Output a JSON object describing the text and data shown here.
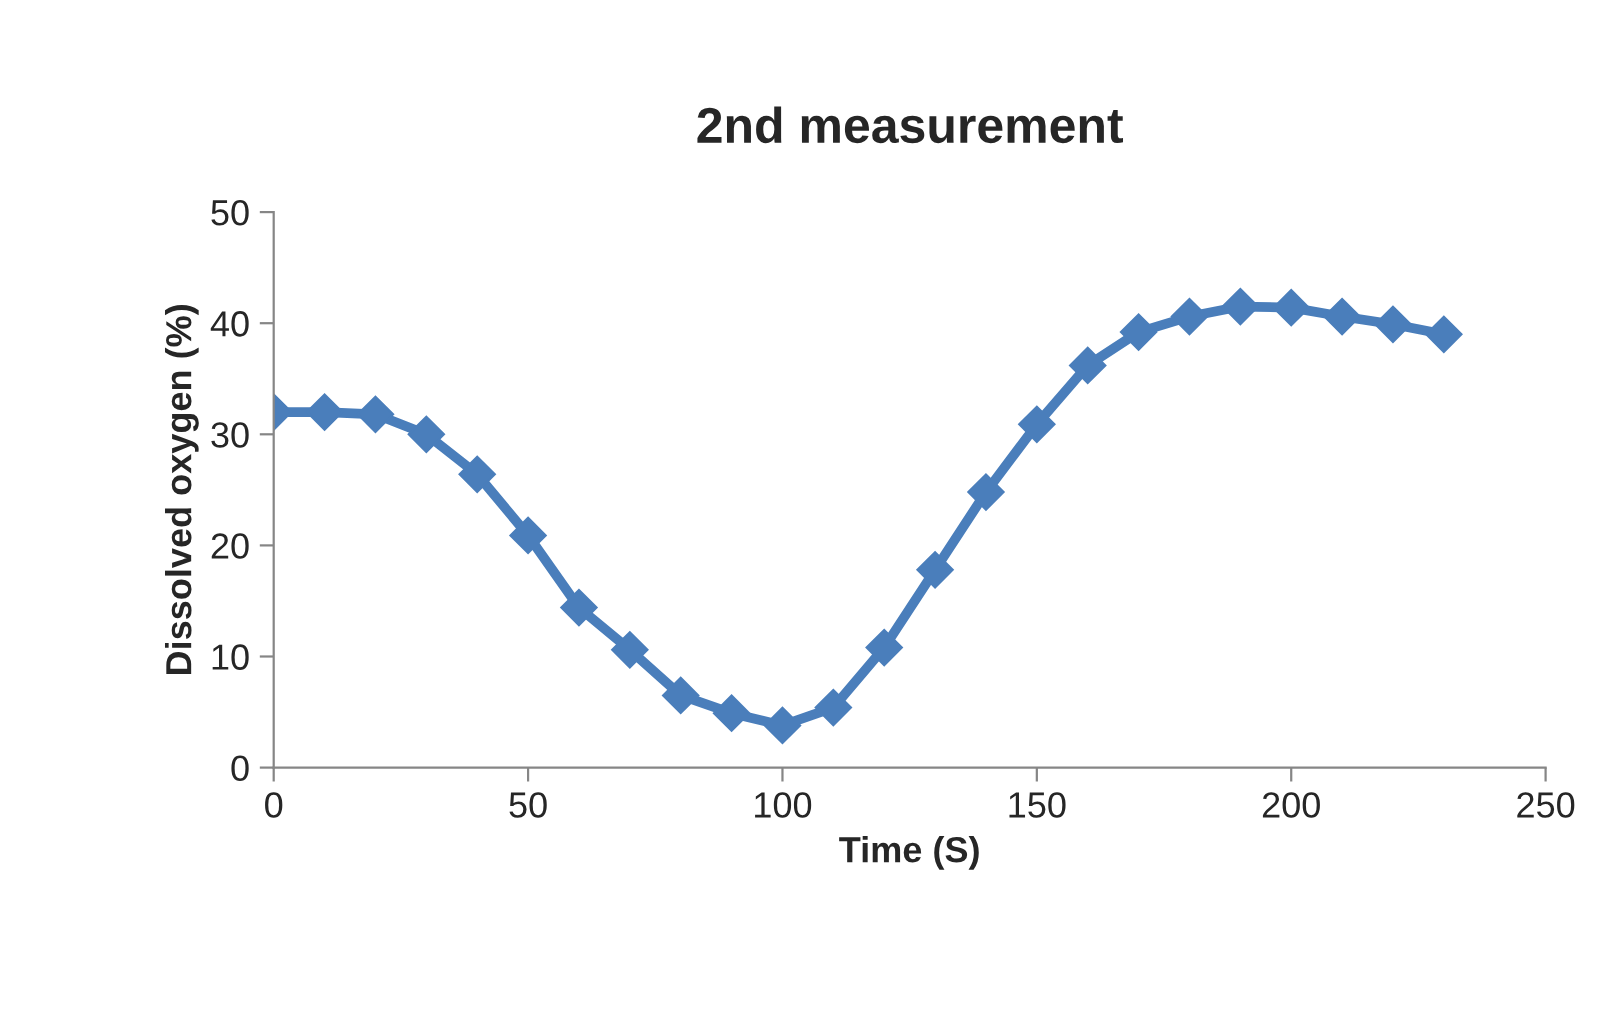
{
  "chart_data": {
    "type": "line",
    "title": "2nd measurement",
    "xlabel": "Time (S)",
    "ylabel": "Dissolved oxygen (%)",
    "x": [
      0,
      10,
      20,
      30,
      40,
      50,
      60,
      70,
      80,
      90,
      100,
      110,
      120,
      130,
      140,
      150,
      160,
      170,
      180,
      190,
      200,
      210,
      220,
      230
    ],
    "series": [
      {
        "color": "#4a7ebb",
        "values": [
          32.0,
          32.0,
          31.8,
          30.0,
          26.4,
          20.9,
          14.4,
          10.6,
          6.5,
          4.9,
          3.8,
          5.4,
          10.8,
          17.8,
          24.8,
          30.9,
          36.2,
          39.2,
          40.6,
          41.5,
          41.4,
          40.6,
          39.9,
          39.0
        ]
      }
    ],
    "xlim": [
      0,
      250
    ],
    "xticks": [
      0,
      50,
      100,
      150,
      200,
      250
    ],
    "ylim": [
      0,
      50
    ],
    "yticks": [
      0,
      10,
      20,
      30,
      40,
      50
    ],
    "grid": false,
    "legend": false,
    "marker": "diamond",
    "line_style": "solid"
  }
}
